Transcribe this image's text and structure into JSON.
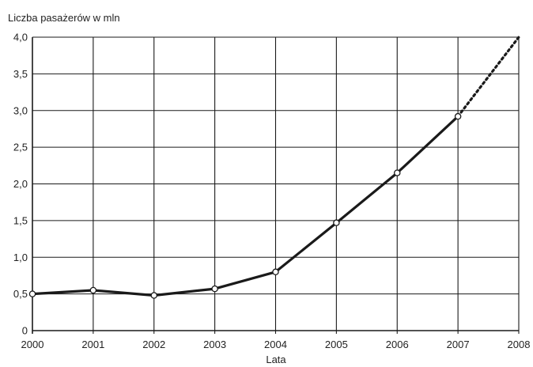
{
  "chart_data": {
    "type": "line",
    "title": "",
    "ylabel": "Liczba pasażerów w mln",
    "xlabel": "Lata",
    "x": [
      2000,
      2001,
      2002,
      2003,
      2004,
      2005,
      2006,
      2007
    ],
    "x_ticks": [
      "2000",
      "2001",
      "2002",
      "2003",
      "2004",
      "2005",
      "2006",
      "2007",
      "2008"
    ],
    "y_ticks": [
      "0",
      "0,5",
      "1,0",
      "1,5",
      "2,0",
      "2,5",
      "3,0",
      "3,5",
      "4,0"
    ],
    "xlim": [
      2000,
      2008
    ],
    "ylim": [
      0,
      4.0
    ],
    "grid": true,
    "series": [
      {
        "values": [
          0.5,
          0.55,
          0.48,
          0.57,
          0.8,
          1.47,
          2.15,
          2.92
        ],
        "style": "solid",
        "markers": true
      }
    ],
    "projection": {
      "style": "dotted",
      "x": [
        2007,
        2008
      ],
      "values": [
        2.92,
        4.0
      ]
    },
    "colors": {
      "line": "#1a1a1a",
      "grid": "#1a1a1a",
      "marker_fill": "#ffffff"
    }
  }
}
